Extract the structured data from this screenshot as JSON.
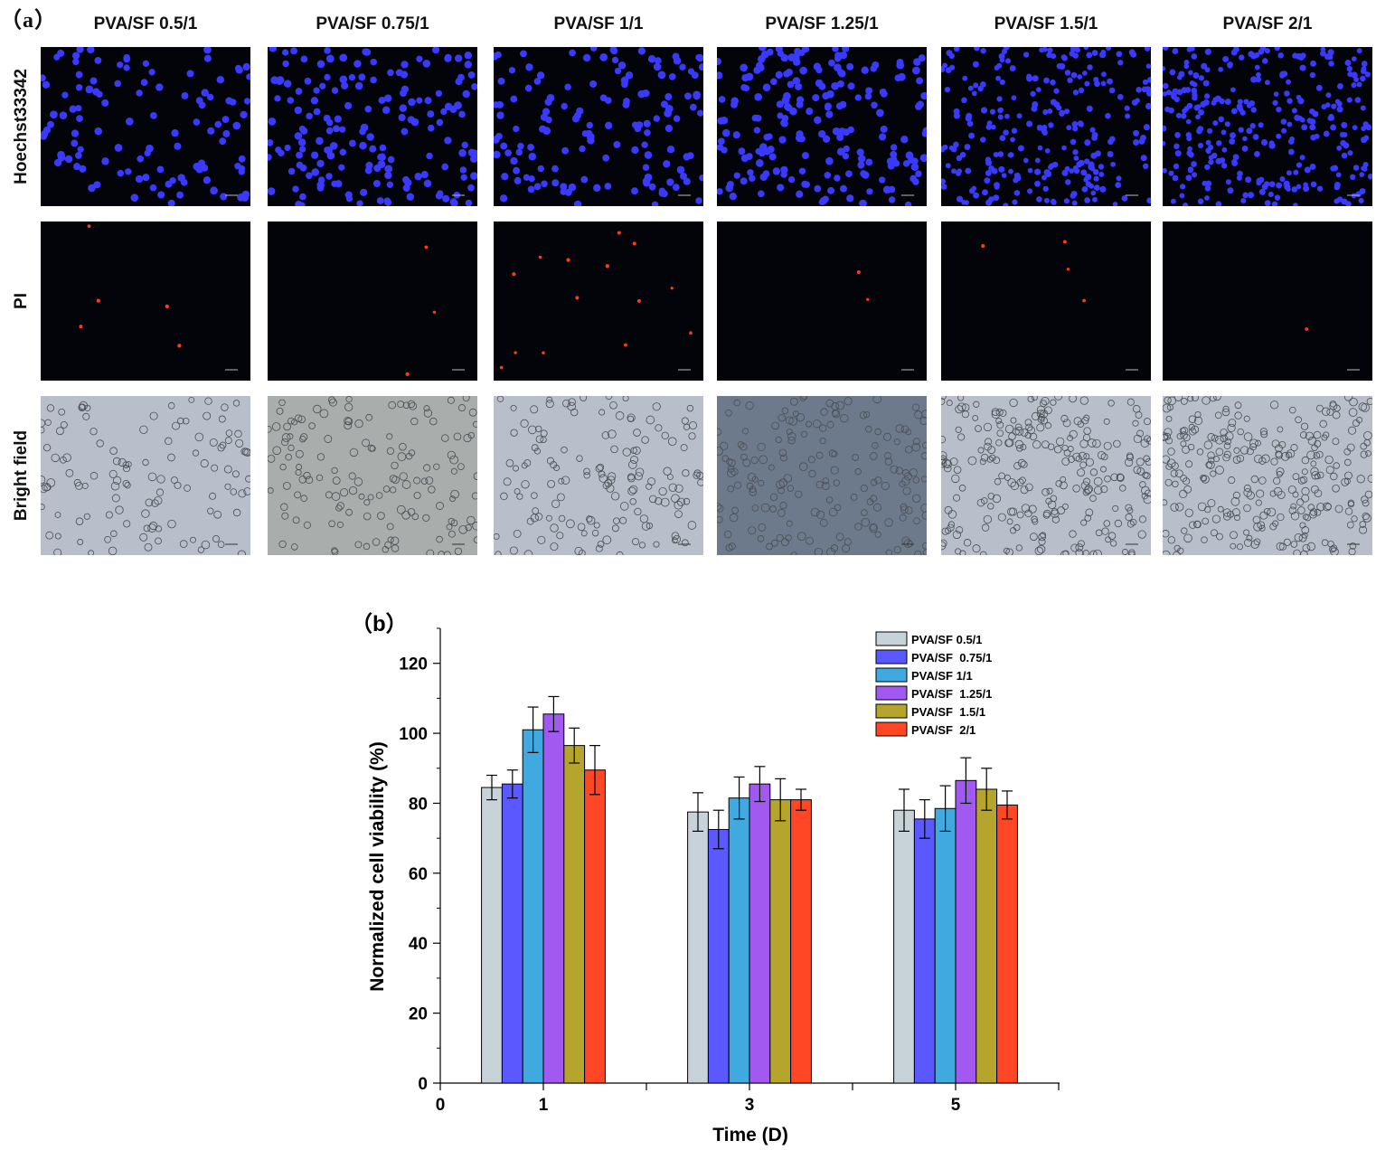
{
  "panel_a": {
    "label": "（a）",
    "columns": [
      "PVA/SF 0.5/1",
      "PVA/SF 0.75/1",
      "PVA/SF 1/1",
      "PVA/SF 1.25/1",
      "PVA/SF 1.5/1",
      "PVA/SF 2/1"
    ],
    "rows": [
      "Hoechst33342",
      "PI",
      "Bright field"
    ],
    "stain_colors": {
      "hoechst": "#3a3aff",
      "pi": "#ff3a1a",
      "bright_bg": "#b8bfca",
      "dark_bg": "#03030a"
    }
  },
  "chart_data": {
    "type": "bar",
    "panel_label": "（b）",
    "xlabel": "Time (D)",
    "ylabel": "Normalized cell viability (%)",
    "categories": [
      "1",
      "3",
      "5"
    ],
    "x_ticks": [
      "0",
      "1",
      "3",
      "5"
    ],
    "y_ticks": [
      "0",
      "20",
      "40",
      "60",
      "80",
      "100",
      "120"
    ],
    "ylim": [
      0,
      130
    ],
    "legend_position": "top-right",
    "series": [
      {
        "name": "PVA/SF 0.5/1",
        "color": "#c7d3d9",
        "values": [
          84.5,
          77.5,
          78.0
        ],
        "errors": [
          3.5,
          5.5,
          6.0
        ]
      },
      {
        "name": "PVA/SF  0.75/1",
        "color": "#5959ff",
        "values": [
          85.5,
          72.5,
          75.5
        ],
        "errors": [
          4.0,
          5.5,
          5.5
        ]
      },
      {
        "name": "PVA/SF 1/1",
        "color": "#3fa9e0",
        "values": [
          101.0,
          81.5,
          78.5
        ],
        "errors": [
          6.5,
          6.0,
          6.5
        ]
      },
      {
        "name": "PVA/SF  1.25/1",
        "color": "#a259f0",
        "values": [
          105.5,
          85.5,
          86.5
        ],
        "errors": [
          5.0,
          5.0,
          6.5
        ]
      },
      {
        "name": "PVA/SF  1.5/1",
        "color": "#b5a52c",
        "values": [
          96.5,
          81.0,
          84.0
        ],
        "errors": [
          5.0,
          6.0,
          6.0
        ]
      },
      {
        "name": "PVA/SF  2/1",
        "color": "#ff4726",
        "values": [
          89.5,
          81.0,
          79.5
        ],
        "errors": [
          7.0,
          3.0,
          4.0
        ]
      }
    ]
  }
}
